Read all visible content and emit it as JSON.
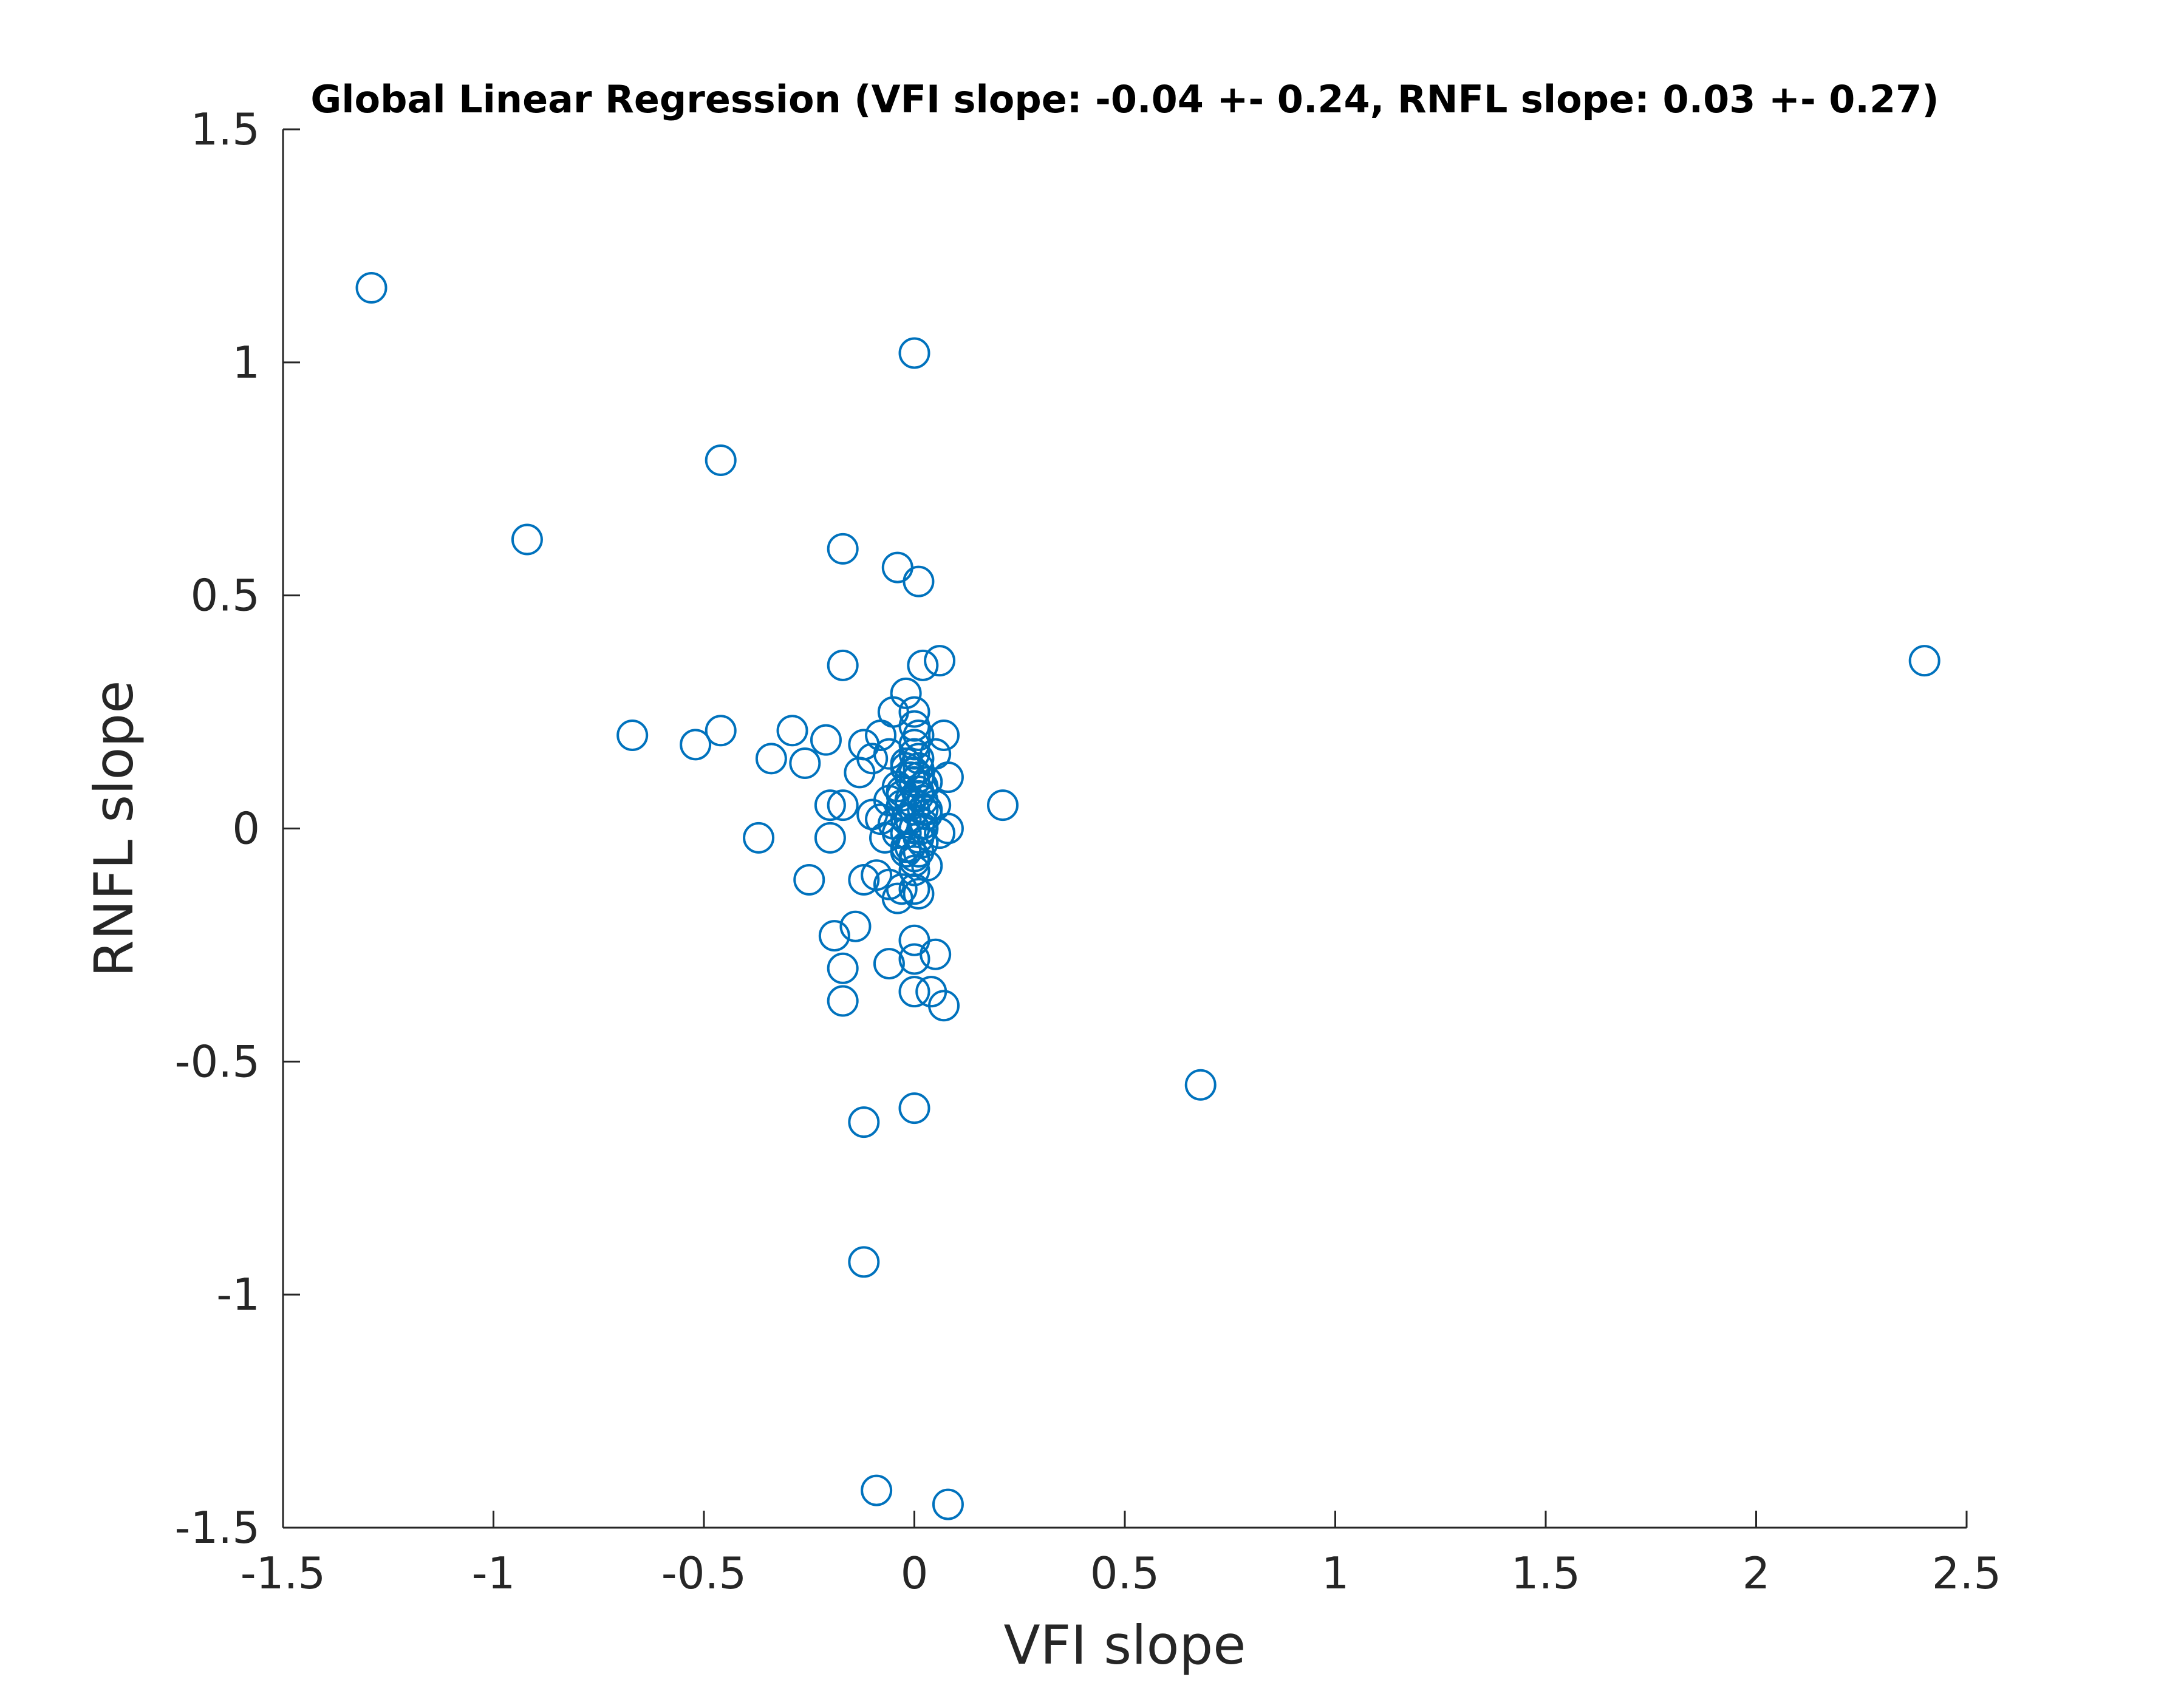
{
  "chart_data": {
    "type": "scatter",
    "title": "Global Linear Regression (VFI slope: -0.04 +- 0.24, RNFL slope: 0.03 +- 0.27)",
    "xlabel": "VFI slope",
    "ylabel": "RNFL slope",
    "xlim": [
      -1.5,
      2.5
    ],
    "ylim": [
      -1.5,
      1.5
    ],
    "xticks": [
      -1.5,
      -1,
      -0.5,
      0,
      0.5,
      1,
      1.5,
      2,
      2.5
    ],
    "xtick_labels": [
      "-1.5",
      "-1",
      "-0.5",
      "0",
      "0.5",
      "1",
      "1.5",
      "2",
      "2.5"
    ],
    "yticks": [
      -1.5,
      -1,
      -0.5,
      0,
      0.5,
      1,
      1.5
    ],
    "ytick_labels": [
      "-1.5",
      "-1",
      "-0.5",
      "0",
      "0.5",
      "1",
      "1.5"
    ],
    "grid": false,
    "marker": "open-circle",
    "color": "#0072BD",
    "series": [
      {
        "x": [
          -1.29,
          -0.0,
          -0.46,
          -0.92,
          -0.17,
          -0.04,
          0.01,
          0.06,
          0.02,
          -0.17,
          -0.02,
          -0.05,
          0.0,
          -0.67,
          -0.46,
          -0.52,
          -0.29,
          -0.21,
          -0.34,
          -0.26,
          0.07,
          0.01,
          -0.12,
          -0.08,
          0.0,
          -0.06,
          -0.13,
          -0.02,
          0.05,
          0.08,
          0.21,
          -0.2,
          -0.17,
          -0.1,
          -0.37,
          -0.2,
          -0.05,
          0.0,
          0.02,
          -0.08,
          0.08,
          0.06,
          0.02,
          0.01,
          -0.04,
          -0.02,
          0.0,
          0.03,
          -0.25,
          -0.12,
          -0.09,
          -0.06,
          -0.03,
          0.0,
          0.01,
          -0.04,
          -0.14,
          -0.19,
          -0.0,
          0.05,
          -0.06,
          -0.17,
          0.0,
          -0.0,
          -0.17,
          0.04,
          0.07,
          0.68,
          0.0,
          -0.12,
          -0.12,
          -0.09,
          0.08,
          2.4,
          0.0,
          0.01,
          0.02,
          -0.01,
          0.0,
          0.03,
          -0.01,
          0.02,
          0.0,
          -0.02,
          0.01,
          -0.03,
          0.02,
          0.0,
          -0.01,
          0.01,
          -0.02,
          0.0,
          0.03,
          -0.03,
          0.02,
          -0.01,
          0.0,
          0.01,
          -0.02,
          0.02,
          -0.04,
          0.0,
          0.01,
          -0.01,
          0.03,
          -0.02,
          0.0,
          0.01,
          -0.03,
          0.02,
          -0.06,
          -0.1,
          0.05,
          -0.07
        ],
        "y": [
          1.16,
          1.02,
          0.79,
          0.62,
          0.6,
          0.56,
          0.53,
          0.36,
          0.35,
          0.35,
          0.29,
          0.25,
          0.25,
          0.2,
          0.21,
          0.18,
          0.21,
          0.19,
          0.15,
          0.14,
          0.2,
          0.2,
          0.18,
          0.2,
          0.22,
          0.16,
          0.12,
          0.13,
          0.16,
          0.11,
          0.05,
          0.05,
          0.05,
          0.03,
          -0.02,
          -0.02,
          0.01,
          0.0,
          0.04,
          0.02,
          0.0,
          -0.01,
          -0.03,
          -0.05,
          -0.01,
          -0.04,
          -0.07,
          -0.08,
          -0.11,
          -0.11,
          -0.1,
          -0.12,
          -0.13,
          -0.13,
          -0.14,
          -0.15,
          -0.21,
          -0.23,
          -0.24,
          -0.27,
          -0.29,
          -0.3,
          -0.28,
          -0.35,
          -0.37,
          -0.35,
          -0.38,
          -0.55,
          -0.6,
          -0.63,
          -0.93,
          -1.42,
          -1.45,
          0.36,
          0.1,
          0.08,
          0.06,
          0.05,
          0.04,
          0.03,
          0.02,
          0.01,
          0.0,
          -0.01,
          -0.02,
          0.07,
          0.09,
          0.12,
          0.11,
          0.15,
          0.14,
          0.16,
          0.1,
          0.05,
          -0.03,
          -0.04,
          -0.06,
          0.07,
          0.02,
          0.0,
          0.09,
          0.18,
          0.13,
          0.06,
          0.04,
          -0.05,
          -0.09,
          0.11,
          0.08,
          0.01,
          0.06,
          0.15,
          0.05,
          -0.02
        ]
      }
    ]
  }
}
